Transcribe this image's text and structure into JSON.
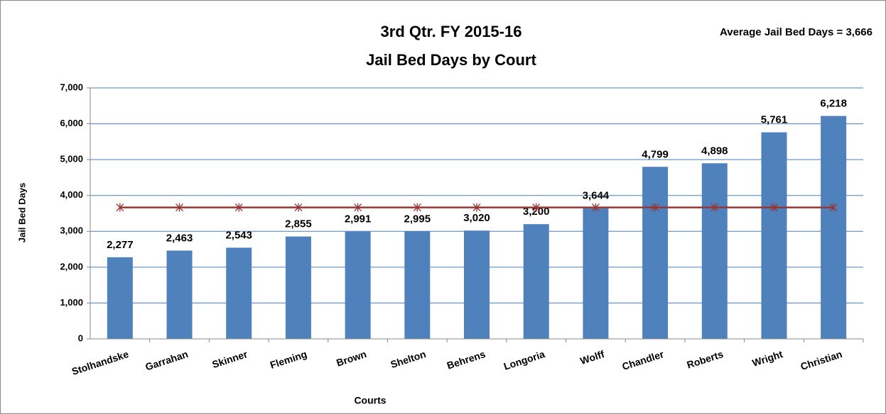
{
  "chart_data": {
    "type": "bar",
    "title": [
      "3rd Qtr. FY 2015-16",
      "Jail Bed Days by Court"
    ],
    "annotation": "Average Jail Bed Days = 3,666",
    "average": 3666,
    "average_color": "#953735",
    "x_label": "Courts",
    "y_label": "Jail Bed Days",
    "categories": [
      "Stolhandske",
      "Garrahan",
      "Skinner",
      "Fleming",
      "Brown",
      "Shelton",
      "Behrens",
      "Longoria",
      "Wolff",
      "Chandler",
      "Roberts",
      "Wright",
      "Christian"
    ],
    "values": [
      2277,
      2463,
      2543,
      2855,
      2991,
      2995,
      3020,
      3200,
      3644,
      4799,
      4898,
      5761,
      6218
    ],
    "value_labels": [
      "2,277",
      "2,463",
      "2,543",
      "2,855",
      "2,991",
      "2,995",
      "3,020",
      "3,200",
      "3,644",
      "4,799",
      "4,898",
      "5,761",
      "6,218"
    ],
    "color": "#4f81bd",
    "ylim": [
      0,
      7000
    ],
    "yticks": [
      0,
      {
        "value": 1000,
        "label": "1,000"
      },
      {
        "value": 2000,
        "label": "2,000"
      },
      {
        "value": 3000,
        "label": "3,000"
      },
      {
        "value": 4000,
        "label": "4,000"
      },
      {
        "value": 5000,
        "label": "5,000"
      },
      {
        "value": 6000,
        "label": "6,000"
      },
      {
        "value": 7000,
        "label": "7,000"
      }
    ],
    "grid": true
  }
}
